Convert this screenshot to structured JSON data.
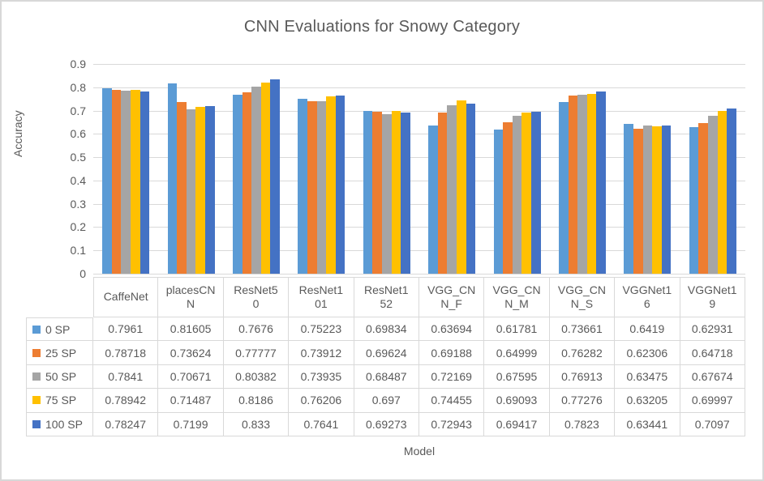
{
  "frame": {
    "background": "#ffffff",
    "border_color": "#d8d8d8",
    "text_color": "#595959",
    "gridline_color": "#d9d9d9"
  },
  "chart_data": {
    "type": "bar",
    "title": "CNN Evaluations for Snowy Category",
    "xlabel": "Model",
    "ylabel": "Accuracy",
    "ylim": [
      0,
      0.9
    ],
    "grid": true,
    "legend_position": "table-left",
    "yticks": [
      "0.9",
      "0.8",
      "0.7",
      "0.6",
      "0.5",
      "0.4",
      "0.3",
      "0.2",
      "0.1",
      "0"
    ],
    "categories": [
      "CaffeNet",
      "placesCNN",
      "ResNet50",
      "ResNet101",
      "ResNet152",
      "VGG_CNN_F",
      "VGG_CNN_M",
      "VGG_CNN_S",
      "VGGNet16",
      "VGGNet19"
    ],
    "categories_display": [
      "CaffeNet",
      "placesCN\nN",
      "ResNet5\n0",
      "ResNet1\n01",
      "ResNet1\n52",
      "VGG_CN\nN_F",
      "VGG_CN\nN_M",
      "VGG_CN\nN_S",
      "VGGNet1\n6",
      "VGGNet1\n9"
    ],
    "series": [
      {
        "name": "0 SP",
        "color": "#5B9BD5",
        "values": [
          0.7961,
          0.81605,
          0.7676,
          0.75223,
          0.69834,
          0.63694,
          0.61781,
          0.73661,
          0.6419,
          0.62931
        ]
      },
      {
        "name": "25 SP",
        "color": "#ED7D31",
        "values": [
          0.78718,
          0.73624,
          0.77777,
          0.73912,
          0.69624,
          0.69188,
          0.64999,
          0.76282,
          0.62306,
          0.64718
        ]
      },
      {
        "name": "50 SP",
        "color": "#A5A5A5",
        "values": [
          0.7841,
          0.70671,
          0.80382,
          0.73935,
          0.68487,
          0.72169,
          0.67595,
          0.76913,
          0.63475,
          0.67674
        ]
      },
      {
        "name": "75 SP",
        "color": "#FFC000",
        "values": [
          0.78942,
          0.71487,
          0.8186,
          0.76206,
          0.697,
          0.74455,
          0.69093,
          0.77276,
          0.63205,
          0.69997
        ]
      },
      {
        "name": "100 SP",
        "color": "#4472C4",
        "values": [
          0.78247,
          0.7199,
          0.833,
          0.7641,
          0.69273,
          0.72943,
          0.69417,
          0.7823,
          0.63441,
          0.7097
        ]
      }
    ]
  }
}
